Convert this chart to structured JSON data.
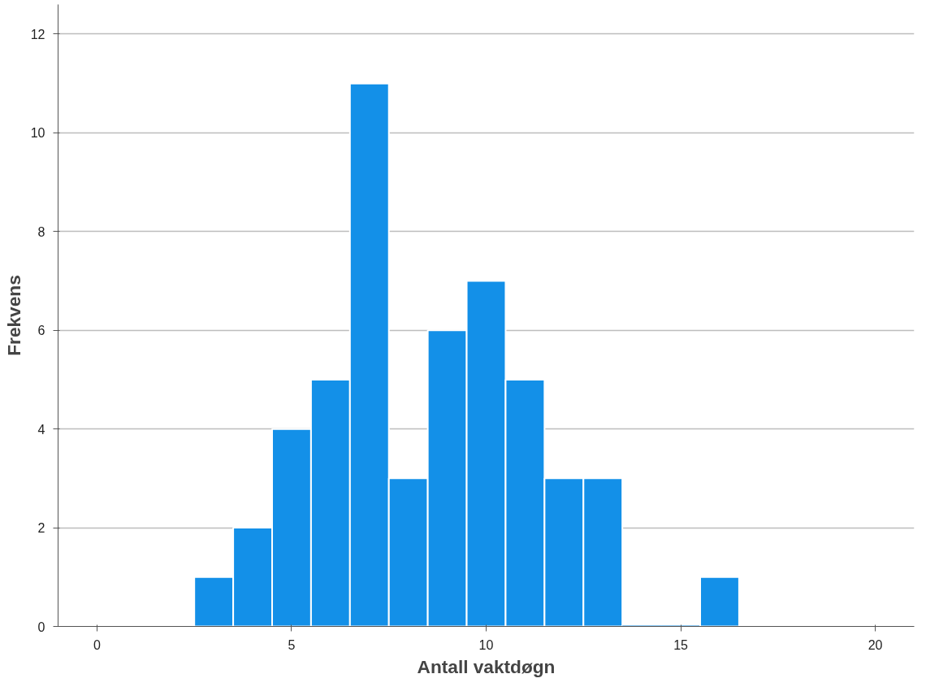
{
  "chart_data": {
    "type": "histogram",
    "xlabel": "Antall vaktdøgn",
    "ylabel": "Frekvens",
    "bins": [
      2.5,
      3.5,
      4.5,
      5.5,
      6.5,
      7.5,
      8.5,
      9.5,
      10.5,
      11.5,
      12.5,
      13.5,
      14.5,
      15.5,
      16.5
    ],
    "values": [
      1,
      2,
      4,
      5,
      11,
      3,
      6,
      7,
      5,
      3,
      3,
      0,
      0,
      1
    ],
    "color": "#1390e8",
    "xlim": [
      -1,
      21
    ],
    "xticks": [
      0,
      5,
      10,
      15,
      20
    ],
    "ylim": [
      0,
      12.6
    ],
    "yticks": [
      0,
      2,
      4,
      6,
      8,
      10,
      12
    ],
    "grid": "y"
  }
}
